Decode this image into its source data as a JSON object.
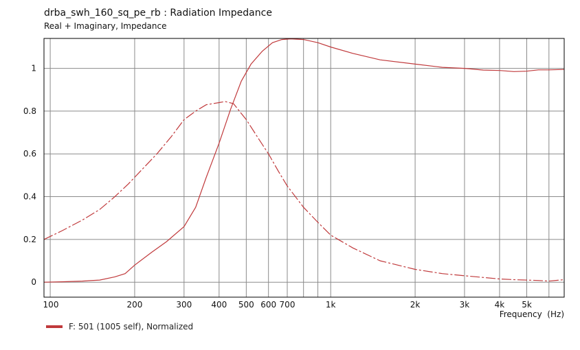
{
  "title": "drba_swh_160_sq_pe_rb : Radiation Impedance",
  "subtitle": "Real + Imaginary, Impedance",
  "colors": {
    "curve": "#c0393b",
    "grid": "#8a8a8a",
    "frame": "#000000"
  },
  "legend": {
    "label": "F: 501 (1005 self), Normalized"
  },
  "chart_data": {
    "type": "line",
    "title": "drba_swh_160_sq_pe_rb : Radiation Impedance",
    "subtitle": "Real + Imaginary, Impedance",
    "xlabel": "Frequency  (Hz)",
    "ylabel": "",
    "xscale": "log",
    "xlim": [
      95,
      6800
    ],
    "ylim": [
      -0.07,
      1.14
    ],
    "grid": true,
    "legend_placement": "bottom-left",
    "x_major_ticks": [
      100,
      200,
      300,
      400,
      500,
      600,
      700,
      1000,
      2000,
      3000,
      4000,
      5000
    ],
    "x_tick_labels": [
      "100",
      "200",
      "300",
      "400",
      "500",
      "600",
      "700",
      "1k",
      "2k",
      "3k",
      "4k",
      "5k"
    ],
    "x_minor_grid": [
      800,
      900,
      6000
    ],
    "y_ticks": [
      0,
      0.2,
      0.4,
      0.6,
      0.8,
      1
    ],
    "y_tick_labels": [
      "0",
      "0.2",
      "0.4",
      "0.6",
      "0.8",
      "1"
    ],
    "series": [
      {
        "name": "F: 501 (1005 self), Normalized",
        "component": "real",
        "style": "solid",
        "x": [
          95,
          110,
          130,
          150,
          170,
          185,
          200,
          230,
          260,
          300,
          330,
          360,
          400,
          440,
          480,
          520,
          570,
          620,
          670,
          720,
          800,
          900,
          1000,
          1200,
          1500,
          2000,
          2500,
          3000,
          3500,
          4000,
          4500,
          5000,
          5500,
          6000,
          6800
        ],
        "y": [
          0,
          0.002,
          0.005,
          0.01,
          0.025,
          0.04,
          0.08,
          0.14,
          0.19,
          0.26,
          0.35,
          0.49,
          0.65,
          0.81,
          0.94,
          1.02,
          1.08,
          1.12,
          1.135,
          1.138,
          1.135,
          1.12,
          1.1,
          1.07,
          1.04,
          1.02,
          1.005,
          1.0,
          0.992,
          0.99,
          0.985,
          0.987,
          0.993,
          0.993,
          0.995
        ]
      },
      {
        "name": "",
        "component": "imaginary",
        "style": "dashed",
        "x": [
          95,
          110,
          130,
          150,
          170,
          190,
          210,
          240,
          270,
          300,
          330,
          360,
          400,
          420,
          450,
          500,
          560,
          600,
          650,
          700,
          800,
          900,
          1000,
          1200,
          1500,
          2000,
          2500,
          3000,
          3500,
          4000,
          4500,
          5000,
          5500,
          6000,
          6800
        ],
        "y": [
          0.2,
          0.24,
          0.29,
          0.34,
          0.4,
          0.46,
          0.52,
          0.6,
          0.68,
          0.76,
          0.8,
          0.83,
          0.84,
          0.845,
          0.835,
          0.76,
          0.66,
          0.6,
          0.52,
          0.45,
          0.35,
          0.28,
          0.22,
          0.16,
          0.1,
          0.06,
          0.04,
          0.03,
          0.022,
          0.015,
          0.012,
          0.01,
          0.008,
          0.005,
          0.012
        ]
      }
    ]
  }
}
